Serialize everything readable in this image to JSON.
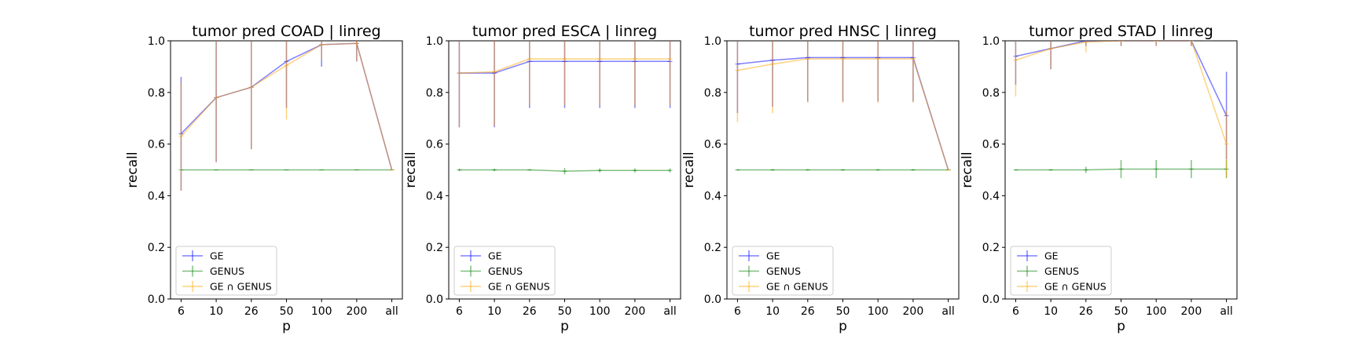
{
  "chart_data": [
    {
      "type": "line",
      "title": "tumor pred COAD | linreg",
      "xlabel": "p",
      "ylabel": "recall",
      "categories": [
        "6",
        "10",
        "26",
        "50",
        "100",
        "200",
        "all"
      ],
      "ylim": [
        0.0,
        1.0
      ],
      "yticks": [
        "0.0",
        "0.2",
        "0.4",
        "0.6",
        "0.8",
        "1.0"
      ],
      "legend": "lower-left",
      "series": [
        {
          "name": "GE",
          "color": "#0000ff",
          "values": [
            0.64,
            0.78,
            0.82,
            0.92,
            0.985,
            0.99,
            0.5
          ],
          "err": [
            0.22,
            0.25,
            0.24,
            0.18,
            0.085,
            0.07,
            0.0
          ]
        },
        {
          "name": "GENUS",
          "color": "#008000",
          "values": [
            0.5,
            0.5,
            0.5,
            0.5,
            0.5,
            0.5,
            0.5
          ],
          "err": [
            0.0,
            0.0,
            0.0,
            0.0,
            0.0,
            0.0,
            0.0
          ]
        },
        {
          "name": "GE ∩ GENUS",
          "color": "#ffa500",
          "values": [
            0.63,
            0.78,
            0.82,
            0.905,
            0.985,
            0.99,
            0.5
          ],
          "err": [
            0.21,
            0.25,
            0.24,
            0.21,
            0.06,
            0.07,
            0.0
          ]
        }
      ]
    },
    {
      "type": "line",
      "title": "tumor pred ESCA | linreg",
      "xlabel": "p",
      "ylabel": "recall",
      "categories": [
        "6",
        "10",
        "26",
        "50",
        "100",
        "200",
        "all"
      ],
      "ylim": [
        0.0,
        1.0
      ],
      "yticks": [
        "0.0",
        "0.2",
        "0.4",
        "0.6",
        "0.8",
        "1.0"
      ],
      "legend": "lower-left",
      "series": [
        {
          "name": "GE",
          "color": "#0000ff",
          "values": [
            0.875,
            0.875,
            0.92,
            0.92,
            0.92,
            0.92,
            0.92
          ],
          "err": [
            0.21,
            0.21,
            0.18,
            0.18,
            0.18,
            0.18,
            0.18
          ]
        },
        {
          "name": "GENUS",
          "color": "#008000",
          "values": [
            0.5,
            0.5,
            0.5,
            0.495,
            0.498,
            0.498,
            0.498
          ],
          "err": [
            0.005,
            0.005,
            0.003,
            0.012,
            0.008,
            0.008,
            0.008
          ]
        },
        {
          "name": "GE ∩ GENUS",
          "color": "#ffa500",
          "values": [
            0.875,
            0.88,
            0.93,
            0.93,
            0.93,
            0.93,
            0.93
          ],
          "err": [
            0.21,
            0.21,
            0.18,
            0.18,
            0.18,
            0.18,
            0.18
          ]
        }
      ]
    },
    {
      "type": "line",
      "title": "tumor pred HNSC | linreg",
      "xlabel": "p",
      "ylabel": "recall",
      "categories": [
        "6",
        "10",
        "26",
        "50",
        "100",
        "200",
        "all"
      ],
      "ylim": [
        0.0,
        1.0
      ],
      "yticks": [
        "0.0",
        "0.2",
        "0.4",
        "0.6",
        "0.8",
        "1.0"
      ],
      "legend": "lower-left",
      "series": [
        {
          "name": "GE",
          "color": "#0000ff",
          "values": [
            0.91,
            0.925,
            0.935,
            0.935,
            0.935,
            0.935,
            0.5
          ],
          "err": [
            0.19,
            0.18,
            0.17,
            0.17,
            0.17,
            0.17,
            0.0
          ]
        },
        {
          "name": "GENUS",
          "color": "#008000",
          "values": [
            0.5,
            0.5,
            0.5,
            0.5,
            0.5,
            0.5,
            0.5
          ],
          "err": [
            0.003,
            0.003,
            0.003,
            0.003,
            0.003,
            0.003,
            0.0
          ]
        },
        {
          "name": "GE ∩ GENUS",
          "color": "#ffa500",
          "values": [
            0.885,
            0.91,
            0.93,
            0.93,
            0.93,
            0.93,
            0.5
          ],
          "err": [
            0.2,
            0.19,
            0.17,
            0.17,
            0.17,
            0.17,
            0.0
          ]
        }
      ]
    },
    {
      "type": "line",
      "title": "tumor pred STAD | linreg",
      "xlabel": "p",
      "ylabel": "recall",
      "categories": [
        "6",
        "10",
        "26",
        "50",
        "100",
        "200",
        "all"
      ],
      "ylim": [
        0.0,
        1.0
      ],
      "yticks": [
        "0.0",
        "0.2",
        "0.4",
        "0.6",
        "0.8",
        "1.0"
      ],
      "legend": "lower-left",
      "series": [
        {
          "name": "GE",
          "color": "#0000ff",
          "values": [
            0.94,
            0.97,
            1.0,
            1.0,
            1.0,
            1.0,
            0.71
          ],
          "err": [
            0.11,
            0.08,
            0.02,
            0.02,
            0.02,
            0.02,
            0.17
          ]
        },
        {
          "name": "GENUS",
          "color": "#008000",
          "values": [
            0.5,
            0.5,
            0.5,
            0.503,
            0.503,
            0.503,
            0.503
          ],
          "err": [
            0.003,
            0.003,
            0.012,
            0.035,
            0.035,
            0.035,
            0.035
          ]
        },
        {
          "name": "GE ∩ GENUS",
          "color": "#ffa500",
          "values": [
            0.925,
            0.97,
            0.995,
            1.0,
            1.0,
            1.0,
            0.6
          ],
          "err": [
            0.14,
            0.08,
            0.04,
            0.02,
            0.02,
            0.02,
            0.13
          ]
        }
      ]
    }
  ]
}
